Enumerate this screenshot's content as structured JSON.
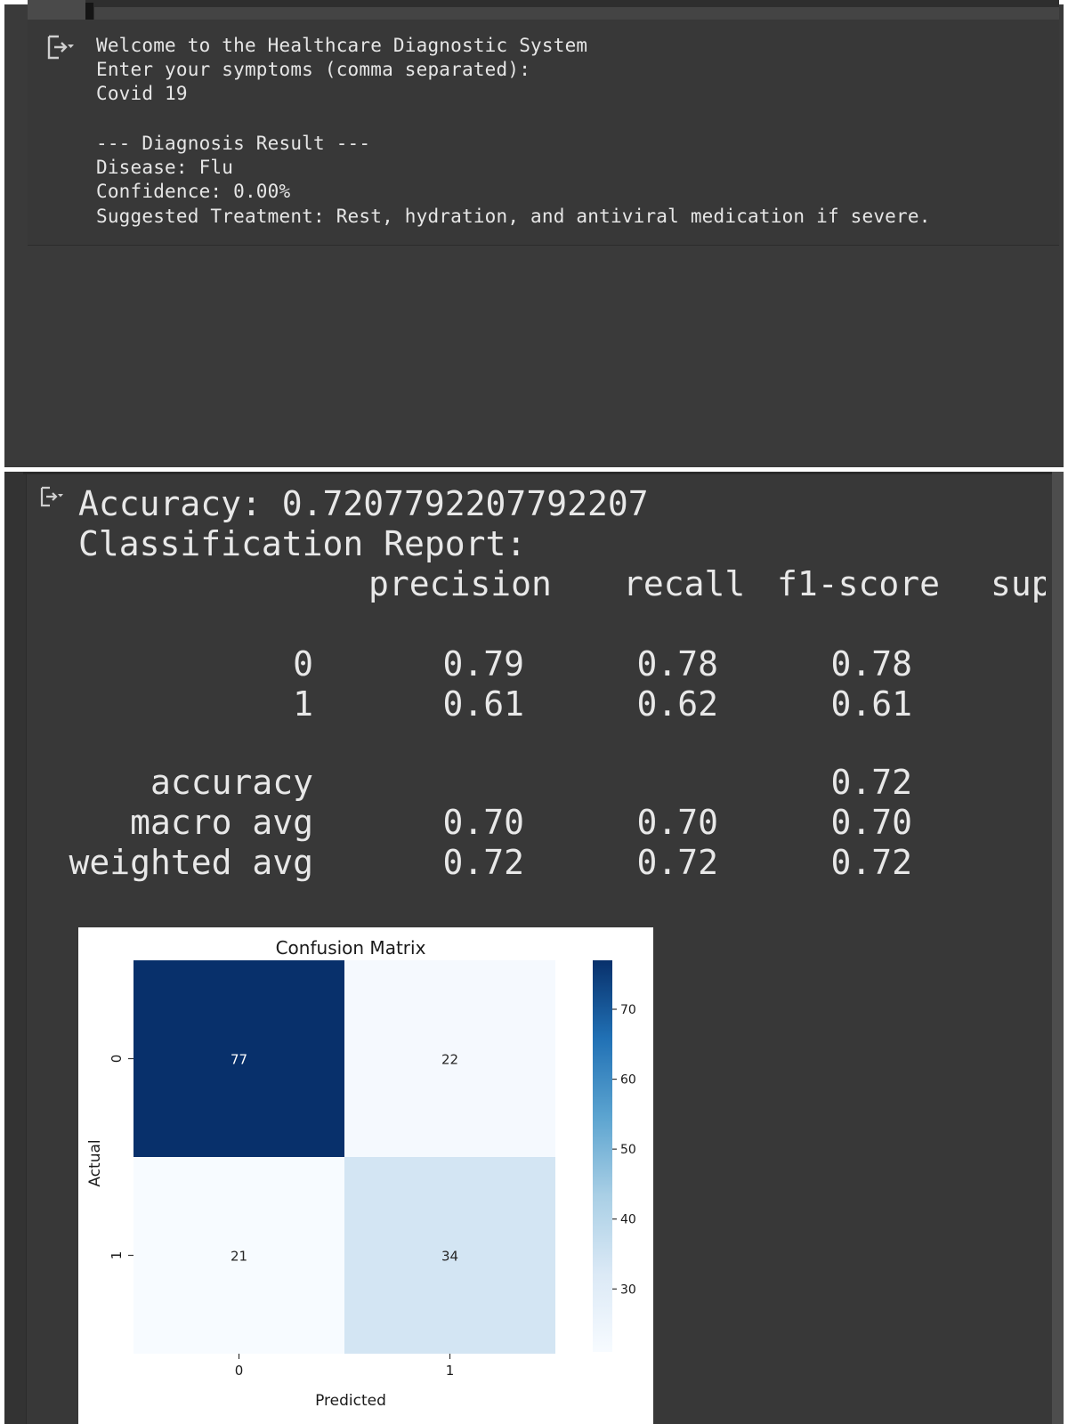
{
  "terminal": {
    "lines": [
      "Welcome to the Healthcare Diagnostic System",
      "Enter your symptoms (comma separated):",
      "Covid 19",
      "",
      "--- Diagnosis Result ---",
      "Disease: Flu",
      "Confidence: 0.00%",
      "Suggested Treatment: Rest, hydration, and antiviral medication if severe."
    ],
    "output_icon": "output-collapse-icon"
  },
  "report": {
    "accuracy_line": "Accuracy: 0.7207792207792207",
    "heading": "Classification Report:",
    "columns": [
      "precision",
      "recall",
      "f1-score",
      "sup"
    ],
    "rows": [
      {
        "label": "0",
        "precision": "0.79",
        "recall": "0.78",
        "f1": "0.78"
      },
      {
        "label": "1",
        "precision": "0.61",
        "recall": "0.62",
        "f1": "0.61"
      },
      {
        "label": "accuracy",
        "precision": "",
        "recall": "",
        "f1": "0.72"
      },
      {
        "label": "macro avg",
        "precision": "0.70",
        "recall": "0.70",
        "f1": "0.70"
      },
      {
        "label": "weighted avg",
        "precision": "0.72",
        "recall": "0.72",
        "f1": "0.72"
      }
    ],
    "output_icon": "output-collapse-icon"
  },
  "chart_data": {
    "type": "heatmap",
    "title": "Confusion Matrix",
    "xlabel": "Predicted",
    "ylabel": "Actual",
    "x_categories": [
      "0",
      "1"
    ],
    "y_categories": [
      "0",
      "1"
    ],
    "values": [
      [
        77,
        22
      ],
      [
        21,
        34
      ]
    ],
    "colormap": "Blues",
    "color_range": [
      21,
      77
    ],
    "colorbar_ticks": [
      70,
      60,
      50,
      40,
      30
    ],
    "colors": {
      "low": "#f7fbff",
      "high": "#08306b"
    }
  }
}
